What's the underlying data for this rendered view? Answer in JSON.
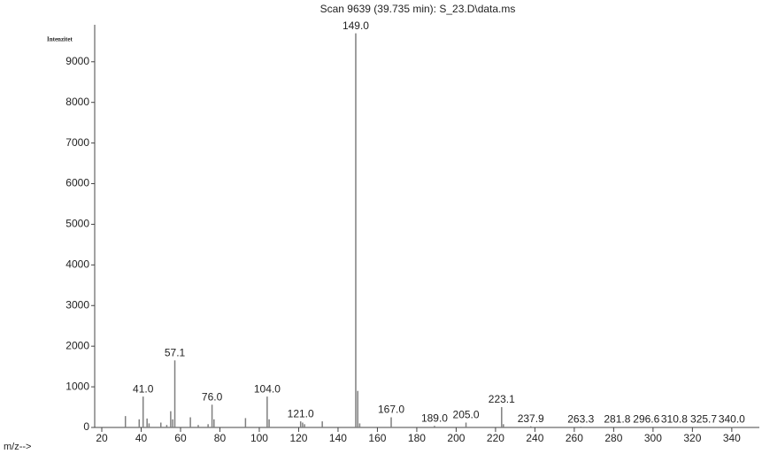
{
  "chart_data": {
    "type": "spectrum",
    "title": "Scan 9639 (39.735 min): S_23.D\\data.ms",
    "y_label": "Intenzitet",
    "x_label": "m/z-->",
    "series": [
      {
        "color": "#7f7f7f",
        "x": [
          32,
          39,
          41.0,
          43,
          44,
          50,
          53,
          55,
          56,
          57.1,
          65,
          69,
          74,
          76.0,
          77,
          93,
          104.0,
          105,
          121.0,
          122,
          123,
          132,
          149.0,
          150,
          151,
          167.0,
          189.0,
          205.0,
          223.1,
          224,
          237.9,
          263.3,
          281.8,
          296.6,
          310.8,
          325.7,
          340.0
        ],
        "values": [
          280,
          200,
          760,
          220,
          100,
          120,
          60,
          400,
          200,
          1650,
          250,
          60,
          80,
          560,
          200,
          230,
          760,
          200,
          150,
          120,
          80,
          150,
          9700,
          900,
          100,
          250,
          40,
          120,
          500,
          80,
          30,
          20,
          15,
          15,
          15,
          15,
          10
        ],
        "x_labels": [
          null,
          null,
          "41.0",
          null,
          null,
          null,
          null,
          null,
          null,
          "57.1",
          null,
          null,
          null,
          "76.0",
          null,
          null,
          "104.0",
          null,
          "121.0",
          null,
          null,
          null,
          "149.0",
          null,
          null,
          "167.0",
          "189.0",
          "205.0",
          "223.1",
          null,
          "237.9",
          "263.3",
          "281.8",
          "296.6",
          "310.8",
          "325.7",
          "340.0"
        ]
      }
    ],
    "xlim": [
      16.4,
      354
    ],
    "ylim": [
      0,
      9910
    ],
    "xticks": [
      20,
      40,
      60,
      80,
      100,
      120,
      140,
      160,
      180,
      200,
      220,
      240,
      260,
      280,
      300,
      320,
      340
    ],
    "yticks": [
      0,
      1000,
      2000,
      3000,
      4000,
      5000,
      6000,
      7000,
      8000,
      9000
    ]
  }
}
